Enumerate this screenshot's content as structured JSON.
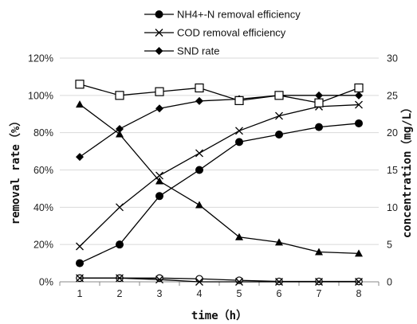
{
  "chart_data": {
    "type": "line",
    "x": [
      1,
      2,
      3,
      4,
      5,
      6,
      7,
      8
    ],
    "xlabel": "time（h）",
    "ylabel_left": "removal rate（%）",
    "ylabel_right": "concentration（mg/L）",
    "ylim_left": [
      0,
      120
    ],
    "ylim_right": [
      0,
      30
    ],
    "left_ticks": [
      "0%",
      "20%",
      "40%",
      "60%",
      "80%",
      "100%",
      "120%"
    ],
    "right_ticks": [
      "0",
      "5",
      "10",
      "15",
      "20",
      "25",
      "30"
    ],
    "x_ticks": [
      "1",
      "2",
      "3",
      "4",
      "5",
      "6",
      "7",
      "8"
    ],
    "grid": "horizontal",
    "legend_position": "top-center",
    "series": [
      {
        "name": "NH4+-N removal efficiency",
        "axis": "left",
        "marker": "filled-circle",
        "values": [
          10,
          20,
          46,
          60,
          75,
          79,
          83,
          85
        ]
      },
      {
        "name": "COD removal efficiency",
        "axis": "left",
        "marker": "x",
        "values": [
          19,
          40,
          57,
          69,
          81,
          89,
          94,
          95
        ]
      },
      {
        "name": "SND rate",
        "axis": "left",
        "marker": "filled-diamond",
        "values": [
          67,
          82,
          93,
          97,
          98,
          100,
          100,
          100
        ]
      },
      {
        "name": "",
        "axis": "right",
        "marker": "filled-triangle",
        "values": [
          23.8,
          19.8,
          13.5,
          10.3,
          6.0,
          5.3,
          4.0,
          3.8
        ]
      },
      {
        "name": "",
        "axis": "right",
        "marker": "open-square",
        "values": [
          26.5,
          25.0,
          25.5,
          26.0,
          24.3,
          25.0,
          24.0,
          26.0
        ]
      },
      {
        "name": "",
        "axis": "right",
        "marker": "open-circle",
        "values": [
          0.5,
          0.5,
          0.5,
          0.4,
          0.2,
          0.05,
          0.05,
          0.05
        ]
      },
      {
        "name": "",
        "axis": "right",
        "marker": "x",
        "values": [
          0.5,
          0.5,
          0.3,
          0.0,
          0.0,
          0.0,
          0.0,
          0.0
        ]
      }
    ],
    "line_color": "#000000",
    "grid_color": "#d9d9d9"
  }
}
